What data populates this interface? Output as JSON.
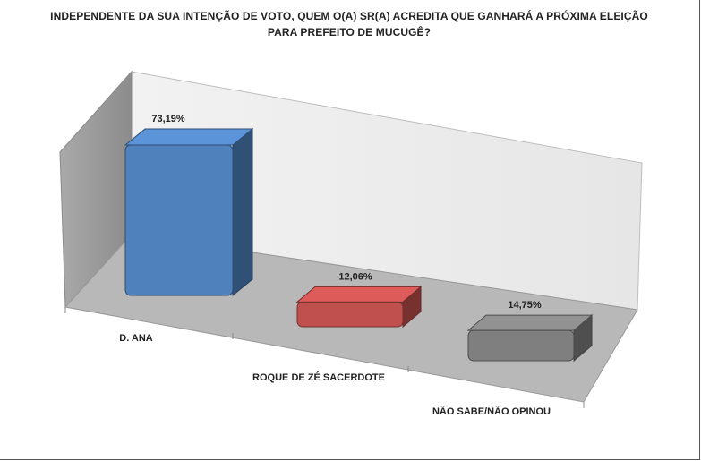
{
  "chart_data": {
    "type": "bar",
    "title_line1": "INDEPENDENTE DA SUA INTENÇÃO DE VOTO, QUEM O(A) SR(A) ACREDITA QUE GANHARÁ A PRÓXIMA ELEIÇÃO",
    "title_line2": "PARA PREFEITO DE MUCUGÊ?",
    "categories": [
      "D. ANA",
      "ROQUE DE ZÉ SACERDOTE",
      "NÃO SABE/NÃO OPINOU"
    ],
    "values": [
      73.19,
      12.06,
      14.75
    ],
    "data_labels": [
      "73,19%",
      "12,06%",
      "14,75%"
    ],
    "colors": [
      "#4f81bd",
      "#c0504d",
      "#7f7f7f"
    ],
    "ylim": [
      0,
      100
    ],
    "grid": false,
    "legend": "none",
    "style": "3d-column"
  }
}
